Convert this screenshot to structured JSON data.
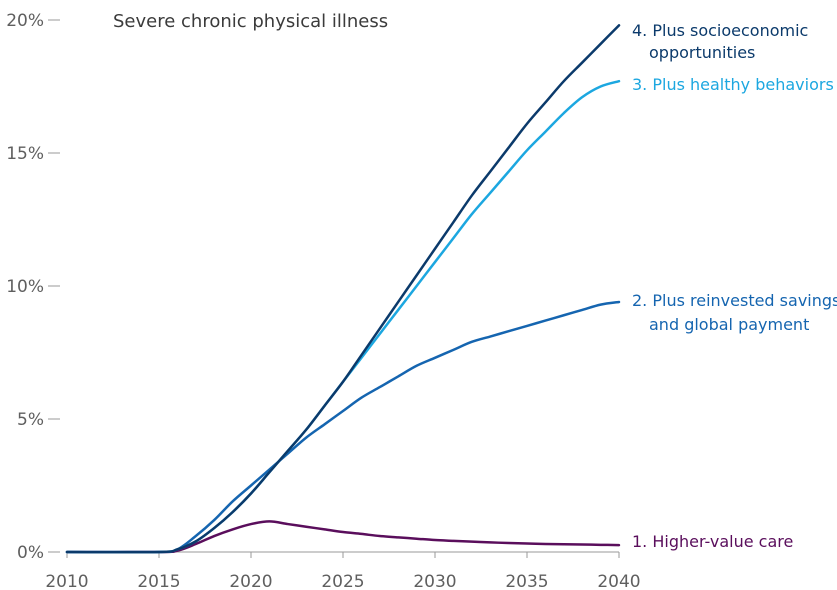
{
  "chart_data": {
    "type": "line",
    "title": "Severe chronic physical illness",
    "xlabel": "",
    "ylabel": "",
    "xlim": [
      2010,
      2040
    ],
    "ylim": [
      0,
      20
    ],
    "x_ticks": [
      "2010",
      "2015",
      "2020",
      "2025",
      "2030",
      "2035",
      "2040"
    ],
    "y_ticks": [
      "0%",
      "5%",
      "10%",
      "15%",
      "20%"
    ],
    "grid": false,
    "series": [
      {
        "name": "4. Plus socioeconomic opportunities",
        "label_lines": [
          "4. Plus socioeconomic",
          "opportunities"
        ],
        "color": "#0b3a6b",
        "x": [
          2010,
          2015,
          2016,
          2017,
          2018,
          2019,
          2020,
          2021,
          2022,
          2023,
          2024,
          2025,
          2026,
          2027,
          2028,
          2029,
          2030,
          2031,
          2032,
          2033,
          2034,
          2035,
          2036,
          2037,
          2038,
          2039,
          2040
        ],
        "y": [
          0,
          0,
          0.1,
          0.4,
          0.9,
          1.5,
          2.2,
          3.0,
          3.8,
          4.6,
          5.5,
          6.4,
          7.4,
          8.4,
          9.4,
          10.4,
          11.4,
          12.4,
          13.4,
          14.3,
          15.2,
          16.1,
          16.9,
          17.7,
          18.4,
          19.1,
          19.8
        ]
      },
      {
        "name": "3. Plus healthy behaviors",
        "label_lines": [
          "3. Plus healthy behaviors"
        ],
        "color": "#1ca7e0",
        "x": [
          2010,
          2015,
          2016,
          2017,
          2018,
          2019,
          2020,
          2021,
          2022,
          2023,
          2024,
          2025,
          2026,
          2027,
          2028,
          2029,
          2030,
          2031,
          2032,
          2033,
          2034,
          2035,
          2036,
          2037,
          2038,
          2039,
          2040
        ],
        "y": [
          0,
          0,
          0.1,
          0.4,
          0.9,
          1.5,
          2.2,
          3.0,
          3.8,
          4.6,
          5.5,
          6.4,
          7.3,
          8.2,
          9.1,
          10.0,
          10.9,
          11.8,
          12.7,
          13.5,
          14.3,
          15.1,
          15.8,
          16.5,
          17.1,
          17.5,
          17.7
        ]
      },
      {
        "name": "2. Plus reinvested savings and global payment",
        "label_lines": [
          "2. Plus reinvested savings",
          "and global payment"
        ],
        "color": "#1565b0",
        "x": [
          2010,
          2015,
          2016,
          2017,
          2018,
          2019,
          2020,
          2021,
          2022,
          2023,
          2024,
          2025,
          2026,
          2027,
          2028,
          2029,
          2030,
          2031,
          2032,
          2033,
          2034,
          2035,
          2036,
          2037,
          2038,
          2039,
          2040
        ],
        "y": [
          0,
          0,
          0.1,
          0.6,
          1.2,
          1.9,
          2.5,
          3.1,
          3.7,
          4.3,
          4.8,
          5.3,
          5.8,
          6.2,
          6.6,
          7.0,
          7.3,
          7.6,
          7.9,
          8.1,
          8.3,
          8.5,
          8.7,
          8.9,
          9.1,
          9.3,
          9.4
        ]
      },
      {
        "name": "1. Higher-value care",
        "label_lines": [
          "1. Higher-value care"
        ],
        "color": "#5a0e5c",
        "x": [
          2010,
          2015,
          2016,
          2017,
          2018,
          2019,
          2020,
          2021,
          2022,
          2023,
          2024,
          2025,
          2026,
          2027,
          2028,
          2029,
          2030,
          2031,
          2032,
          2033,
          2034,
          2035,
          2036,
          2037,
          2038,
          2039,
          2040
        ],
        "y": [
          0,
          0,
          0.05,
          0.3,
          0.6,
          0.85,
          1.05,
          1.15,
          1.05,
          0.95,
          0.85,
          0.75,
          0.68,
          0.6,
          0.55,
          0.5,
          0.45,
          0.42,
          0.39,
          0.36,
          0.34,
          0.32,
          0.3,
          0.29,
          0.28,
          0.27,
          0.26
        ]
      }
    ]
  }
}
